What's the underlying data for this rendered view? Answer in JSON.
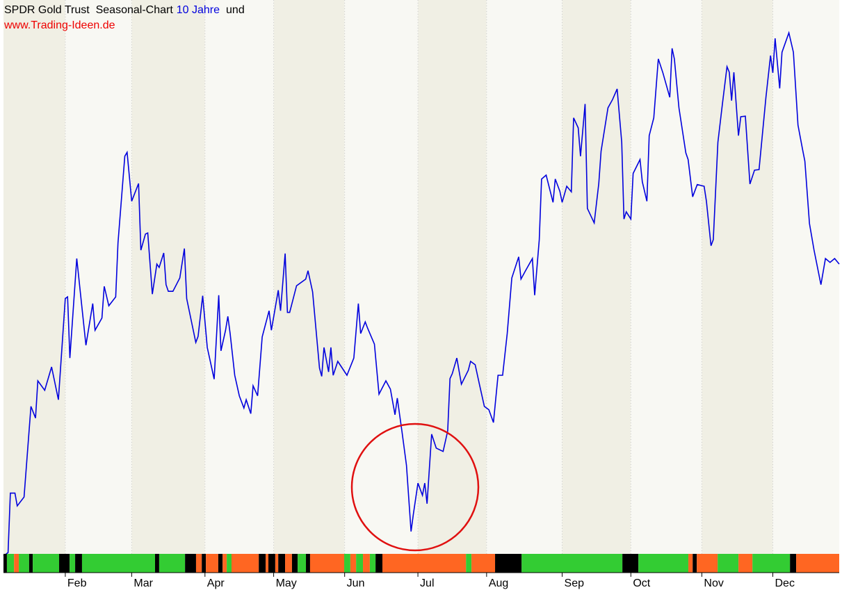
{
  "chart_data": {
    "type": "line",
    "title": "SPDR Gold Trust  Seasonal-Chart",
    "period": "10 Jahre",
    "title_suffix": "und",
    "subtitle": "www.Trading-Ideen.de",
    "color": "#0000dd",
    "xlim": [
      0,
      365
    ],
    "ylim": [
      0,
      100
    ],
    "xticks": [
      {
        "value": 27,
        "label": "Feb"
      },
      {
        "value": 56,
        "label": "Mar"
      },
      {
        "value": 88,
        "label": "Apr"
      },
      {
        "value": 118,
        "label": "May"
      },
      {
        "value": 149,
        "label": "Jun"
      },
      {
        "value": 181,
        "label": "Jul"
      },
      {
        "value": 211,
        "label": "Aug"
      },
      {
        "value": 244,
        "label": "Sep"
      },
      {
        "value": 274,
        "label": "Oct"
      },
      {
        "value": 305,
        "label": "Nov"
      },
      {
        "value": 336,
        "label": "Dec"
      }
    ],
    "grid": true,
    "x": [
      0,
      2,
      3,
      5,
      6,
      9,
      12,
      14,
      15,
      18,
      21,
      24,
      27,
      28,
      29,
      32,
      36,
      39,
      40,
      43,
      44,
      46,
      49,
      50,
      53,
      54,
      56,
      59,
      60,
      62,
      63,
      65,
      67,
      68,
      70,
      71,
      72,
      74,
      77,
      79,
      80,
      84,
      85,
      87,
      89,
      92,
      94,
      95,
      97,
      98,
      99,
      101,
      103,
      105,
      106,
      108,
      109,
      111,
      113,
      116,
      117,
      120,
      121,
      123,
      124,
      125,
      128,
      132,
      133,
      135,
      138,
      139,
      140,
      142,
      143,
      144,
      146,
      150,
      153,
      155,
      156,
      158,
      159,
      162,
      164,
      167,
      169,
      171,
      172,
      174,
      176,
      178,
      179,
      181,
      183,
      184,
      185,
      187,
      189,
      192,
      194,
      195,
      196,
      198,
      200,
      203,
      204,
      206,
      208,
      210,
      212,
      214,
      216,
      218,
      220,
      222,
      225,
      226,
      228,
      231,
      232,
      234,
      235,
      237,
      240,
      241,
      243,
      244,
      246,
      248,
      249,
      251,
      252,
      254,
      255,
      258,
      260,
      261,
      264,
      266,
      268,
      270,
      271,
      272,
      274,
      275,
      278,
      279,
      281,
      282,
      284,
      286,
      288,
      291,
      292,
      293,
      295,
      298,
      299,
      301,
      303,
      306,
      307,
      309,
      310,
      312,
      314,
      316,
      317,
      318,
      319,
      321,
      322,
      324,
      326,
      328,
      330,
      333,
      335,
      336,
      337,
      339,
      340,
      343,
      345,
      347,
      349,
      350,
      352,
      354,
      357,
      359,
      361,
      363,
      365
    ],
    "values": [
      0,
      0.6,
      11.3,
      11.3,
      9,
      10.6,
      26.9,
      24.8,
      31.5,
      29.8,
      34,
      28.1,
      46.3,
      46.6,
      35.6,
      53.5,
      37.9,
      45.4,
      40.6,
      42.8,
      48.5,
      45,
      46.6,
      56.3,
      71.9,
      72.6,
      63.8,
      67,
      55,
      57.9,
      58.1,
      47.1,
      52.5,
      51.9,
      54.5,
      48.8,
      47.6,
      47.6,
      50,
      55.3,
      46.3,
      38.4,
      39.5,
      46.8,
      37.5,
      31.8,
      46.9,
      36.9,
      40.6,
      43.1,
      40,
      32.5,
      28.8,
      26.6,
      28.1,
      25.6,
      30.6,
      28.8,
      39.4,
      44.1,
      40.6,
      47.8,
      44.1,
      54.4,
      43.8,
      43.8,
      48.6,
      49.8,
      51.3,
      47.5,
      33.8,
      32.3,
      37.5,
      33.1,
      37.5,
      32.5,
      35,
      32.5,
      35.6,
      45.4,
      40,
      42.1,
      41,
      38.1,
      29.1,
      31.5,
      30,
      25.4,
      28.4,
      22.5,
      16.3,
      4.4,
      7.5,
      13.1,
      10.9,
      13.1,
      9.4,
      21.9,
      19.4,
      18.8,
      22.5,
      31.9,
      32.8,
      35.6,
      30.9,
      33.4,
      35,
      34.4,
      30.6,
      26.9,
      26.3,
      24,
      32.5,
      32.5,
      40,
      50,
      53.8,
      49.8,
      51.3,
      53.5,
      46.9,
      56.9,
      67.8,
      68.5,
      63.6,
      67.8,
      65.6,
      63.6,
      66.5,
      65.5,
      78.8,
      77,
      71.9,
      81.3,
      62.5,
      59.9,
      67,
      72.8,
      80.6,
      82.1,
      84,
      74.4,
      60.6,
      61.9,
      60.6,
      68.8,
      71.3,
      67.3,
      63.8,
      75.6,
      78.8,
      89.4,
      86.9,
      82.5,
      91.3,
      89.4,
      80.6,
      72.5,
      71.3,
      64.6,
      66.8,
      66.5,
      63.8,
      55.8,
      56.9,
      74.4,
      81.3,
      88,
      87,
      81.9,
      87,
      75.6,
      79,
      79.1,
      66.9,
      69.4,
      69.5,
      82.5,
      90,
      86.9,
      93.1,
      84.1,
      90.6,
      94.1,
      90.6,
      77.5,
      73.1,
      71,
      59.8,
      55,
      48.8,
      53.5,
      52.8,
      53.5,
      52.5
    ],
    "signal_bar": [
      {
        "start": 0,
        "end": 1.5,
        "color": "#000000"
      },
      {
        "start": 1.5,
        "end": 4.6,
        "color": "#33cc33"
      },
      {
        "start": 4.6,
        "end": 6.7,
        "color": "#ff6622"
      },
      {
        "start": 6.7,
        "end": 11.2,
        "color": "#33cc33"
      },
      {
        "start": 11.2,
        "end": 12.8,
        "color": "#000000"
      },
      {
        "start": 12.8,
        "end": 24.3,
        "color": "#33cc33"
      },
      {
        "start": 24.3,
        "end": 28.9,
        "color": "#000000"
      },
      {
        "start": 28.9,
        "end": 31.3,
        "color": "#33cc33"
      },
      {
        "start": 31.3,
        "end": 34.3,
        "color": "#000000"
      },
      {
        "start": 34.3,
        "end": 66.2,
        "color": "#33cc33"
      },
      {
        "start": 66.2,
        "end": 68,
        "color": "#000000"
      },
      {
        "start": 68,
        "end": 79.3,
        "color": "#33cc33"
      },
      {
        "start": 79.3,
        "end": 84.1,
        "color": "#000000"
      },
      {
        "start": 84.1,
        "end": 86.6,
        "color": "#ff6622"
      },
      {
        "start": 86.6,
        "end": 88.4,
        "color": "#000000"
      },
      {
        "start": 88.4,
        "end": 93.8,
        "color": "#ff6622"
      },
      {
        "start": 93.8,
        "end": 95.7,
        "color": "#000000"
      },
      {
        "start": 95.7,
        "end": 97.5,
        "color": "#ff6622"
      },
      {
        "start": 97.5,
        "end": 99.6,
        "color": "#33cc33"
      },
      {
        "start": 99.6,
        "end": 111.5,
        "color": "#ff6622"
      },
      {
        "start": 111.5,
        "end": 114.5,
        "color": "#000000"
      },
      {
        "start": 114.5,
        "end": 115.7,
        "color": "#ff6622"
      },
      {
        "start": 115.7,
        "end": 118.7,
        "color": "#000000"
      },
      {
        "start": 118.7,
        "end": 120,
        "color": "#ff6622"
      },
      {
        "start": 120,
        "end": 123,
        "color": "#000000"
      },
      {
        "start": 123,
        "end": 126,
        "color": "#ff6622"
      },
      {
        "start": 126,
        "end": 128.5,
        "color": "#000000"
      },
      {
        "start": 128.5,
        "end": 132.1,
        "color": "#33cc33"
      },
      {
        "start": 132.1,
        "end": 133.9,
        "color": "#000000"
      },
      {
        "start": 133.9,
        "end": 148.8,
        "color": "#ff6622"
      },
      {
        "start": 148.8,
        "end": 151.5,
        "color": "#33cc33"
      },
      {
        "start": 151.5,
        "end": 154,
        "color": "#ff6622"
      },
      {
        "start": 154,
        "end": 157,
        "color": "#33cc33"
      },
      {
        "start": 157,
        "end": 160,
        "color": "#ff6622"
      },
      {
        "start": 160,
        "end": 162.5,
        "color": "#33cc33"
      },
      {
        "start": 162.5,
        "end": 165.5,
        "color": "#000000"
      },
      {
        "start": 165.5,
        "end": 202,
        "color": "#ff6622"
      },
      {
        "start": 202,
        "end": 204.4,
        "color": "#33cc33"
      },
      {
        "start": 204.4,
        "end": 214.7,
        "color": "#ff6622"
      },
      {
        "start": 214.7,
        "end": 226.3,
        "color": "#000000"
      },
      {
        "start": 226.3,
        "end": 270.3,
        "color": "#33cc33"
      },
      {
        "start": 270.3,
        "end": 277.3,
        "color": "#000000"
      },
      {
        "start": 277.3,
        "end": 299.1,
        "color": "#33cc33"
      },
      {
        "start": 299.1,
        "end": 301,
        "color": "#ff6622"
      },
      {
        "start": 301,
        "end": 302.8,
        "color": "#000000"
      },
      {
        "start": 302.8,
        "end": 311.9,
        "color": "#ff6622"
      },
      {
        "start": 311.9,
        "end": 321,
        "color": "#33cc33"
      },
      {
        "start": 321,
        "end": 327.1,
        "color": "#ff6622"
      },
      {
        "start": 327.1,
        "end": 343.5,
        "color": "#33cc33"
      },
      {
        "start": 343.5,
        "end": 346.2,
        "color": "#000000"
      },
      {
        "start": 346.2,
        "end": 365,
        "color": "#ff6622"
      }
    ]
  }
}
